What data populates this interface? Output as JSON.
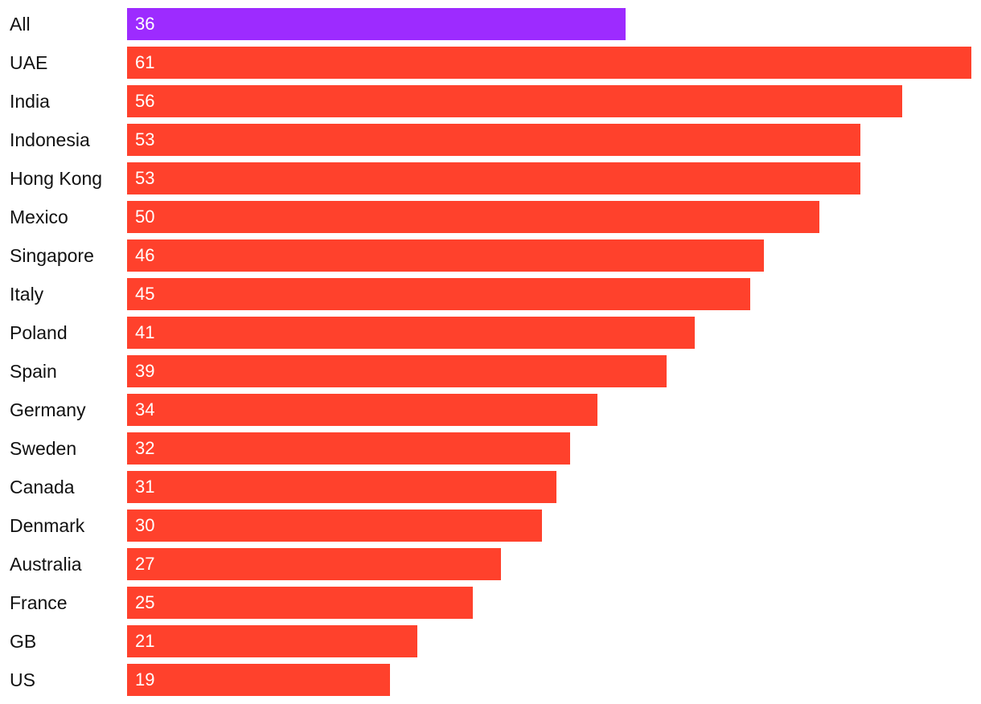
{
  "chart_data": {
    "type": "bar",
    "orientation": "horizontal",
    "categories": [
      "All",
      "UAE",
      "India",
      "Indonesia",
      "Hong Kong",
      "Mexico",
      "Singapore",
      "Italy",
      "Poland",
      "Spain",
      "Germany",
      "Sweden",
      "Canada",
      "Denmark",
      "Australia",
      "France",
      "GB",
      "US"
    ],
    "values": [
      36,
      61,
      56,
      53,
      53,
      50,
      46,
      45,
      41,
      39,
      34,
      32,
      31,
      30,
      27,
      25,
      21,
      19
    ],
    "xlim": [
      0,
      61
    ],
    "grid": false,
    "legend": "none",
    "data_labels": "inside-left",
    "colors": {
      "highlight": "#9d2bff",
      "default": "#ff412c",
      "label_text": "#111111",
      "value_text": "#ffffff"
    },
    "highlight_categories": [
      "All"
    ]
  }
}
